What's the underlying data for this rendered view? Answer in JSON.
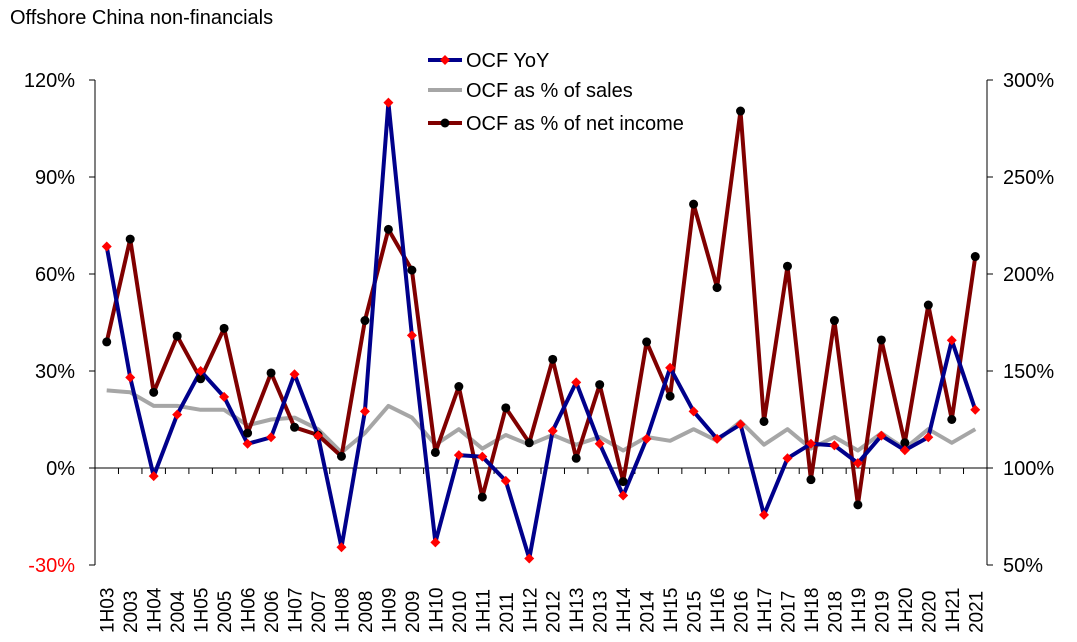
{
  "chart_data": {
    "type": "line",
    "title": "Offshore China non-financials",
    "categories": [
      "1H03",
      "2003",
      "1H04",
      "2004",
      "1H05",
      "2005",
      "1H06",
      "2006",
      "1H07",
      "2007",
      "1H08",
      "2008",
      "1H09",
      "2009",
      "1H10",
      "2010",
      "1H11",
      "2011",
      "1H12",
      "2012",
      "1H13",
      "2013",
      "1H14",
      "2014",
      "1H15",
      "2015",
      "1H16",
      "2016",
      "1H17",
      "2017",
      "1H18",
      "2018",
      "1H19",
      "2019",
      "1H20",
      "2020",
      "1H21",
      "2021"
    ],
    "y_left": {
      "ylim": [
        -30,
        120
      ],
      "ticks": [
        -30,
        0,
        30,
        60,
        90,
        120
      ],
      "tick_labels": [
        "-30%",
        "0%",
        "30%",
        "60%",
        "90%",
        "120%"
      ],
      "negative_color": "#ff0000"
    },
    "y_right": {
      "ylim": [
        50,
        300
      ],
      "ticks": [
        50,
        100,
        150,
        200,
        250,
        300
      ],
      "tick_labels": [
        "50%",
        "100%",
        "150%",
        "200%",
        "250%",
        "300%"
      ]
    },
    "series": [
      {
        "name": "OCF YoY",
        "axis": "left",
        "color": "#00008b",
        "marker_color": "#ff0000",
        "marker": "diamond",
        "values": [
          68.5,
          28,
          -2.5,
          16.5,
          30,
          22,
          7.5,
          9.5,
          29,
          10,
          -24.5,
          17.5,
          113,
          41,
          -23,
          4,
          3.5,
          -4,
          -28,
          11.5,
          26.5,
          7.5,
          -8.5,
          9,
          31,
          17.5,
          9,
          13.5,
          -14.5,
          3,
          7.5,
          7,
          1.5,
          10,
          5.5,
          9.5,
          39.5,
          18
        ]
      },
      {
        "name": "OCF as % of sales",
        "axis": "right",
        "color": "#a6a6a6",
        "marker": "none",
        "values": [
          140,
          139,
          132,
          132,
          130,
          130,
          122,
          125,
          126,
          120,
          108,
          118,
          132,
          126,
          112,
          120,
          110,
          117,
          112,
          117,
          112,
          116,
          109,
          116,
          114,
          120,
          114,
          124,
          112,
          120,
          110,
          116,
          109,
          118,
          110,
          120,
          113,
          120
        ]
      },
      {
        "name": "OCF as % of net income",
        "axis": "right",
        "color": "#800000",
        "marker_color": "#000000",
        "marker": "circle",
        "values": [
          165,
          218,
          139,
          168,
          146,
          172,
          118,
          149,
          121,
          117,
          106,
          176,
          223,
          202,
          108,
          142,
          85,
          131,
          113,
          156,
          105,
          143,
          93,
          165,
          137,
          236,
          193,
          284,
          124,
          204,
          94,
          176,
          81,
          166,
          113,
          184,
          125,
          209
        ]
      }
    ],
    "legend": {
      "position": "top-center"
    }
  }
}
